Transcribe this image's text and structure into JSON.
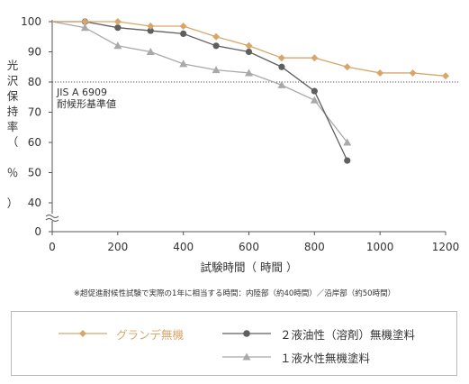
{
  "chart_data": {
    "type": "line",
    "title": "",
    "xlabel": "試験時間（ 時間 ）",
    "ylabel": "光沢保持率（ ％ ）",
    "xlim": [
      0,
      1200
    ],
    "ylim": [
      0,
      100
    ],
    "axis_break": "between 0 and 40 on y axis",
    "x_ticks": [
      "0",
      "200",
      "400",
      "600",
      "800",
      "1000",
      "1200"
    ],
    "y_ticks": [
      "0",
      "40",
      "50",
      "60",
      "70",
      "80",
      "90",
      "100"
    ],
    "reference_line": {
      "y": 80,
      "label_line1": "JIS A 6909",
      "label_line2": "耐候形基準値",
      "style": "dotted"
    },
    "series": [
      {
        "name": "グランデ無機",
        "color": "#d9a66a",
        "marker": "diamond",
        "x": [
          0,
          100,
          200,
          300,
          400,
          500,
          600,
          700,
          800,
          900,
          1000,
          1100,
          1200
        ],
        "y": [
          100,
          100,
          100,
          98.5,
          98.5,
          95,
          92,
          88,
          88,
          85,
          83,
          83,
          82
        ]
      },
      {
        "name": "２液油性（溶剤）無機塗料",
        "color": "#5f5f5f",
        "marker": "circle",
        "x": [
          0,
          100,
          200,
          300,
          400,
          500,
          600,
          700,
          800,
          900
        ],
        "y": [
          100,
          100,
          98,
          97,
          96,
          92,
          90,
          85,
          77,
          54
        ]
      },
      {
        "name": "１液水性無機塗料",
        "color": "#a9a9a9",
        "marker": "triangle",
        "x": [
          0,
          100,
          200,
          300,
          400,
          500,
          600,
          700,
          800,
          900
        ],
        "y": [
          100,
          98,
          92,
          90,
          86,
          84,
          83,
          79,
          74,
          60
        ]
      }
    ],
    "legend_position": "bottom",
    "grid": false
  },
  "footnote": "※超促進耐候性試験で実際の1年に相当する時間：内陸部（約40時間）／沿岸部（約50時間）"
}
